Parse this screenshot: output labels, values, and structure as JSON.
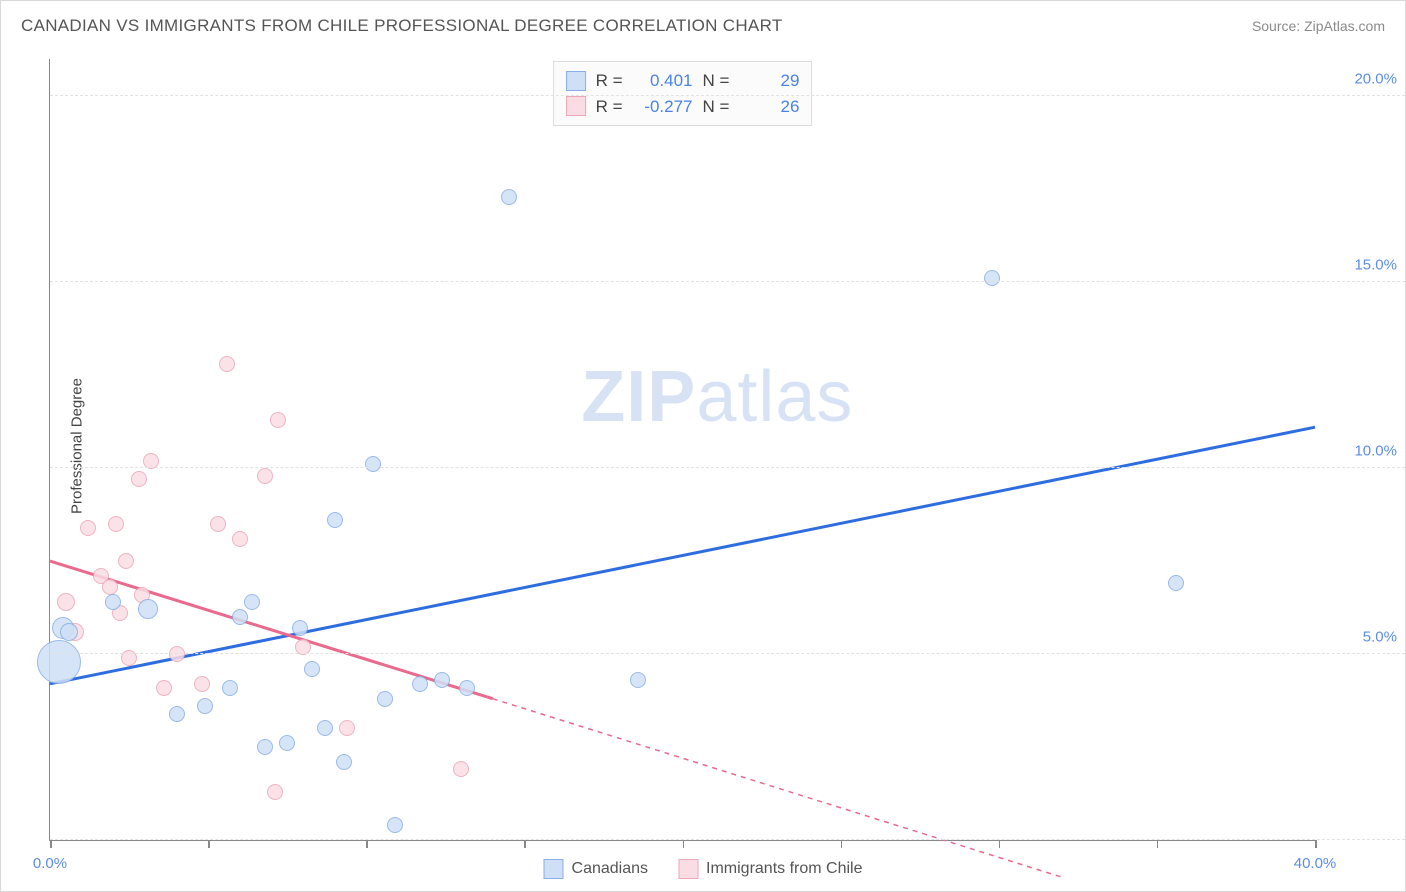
{
  "title": "CANADIAN VS IMMIGRANTS FROM CHILE PROFESSIONAL DEGREE CORRELATION CHART",
  "source_label": "Source: ZipAtlas.com",
  "y_axis_label": "Professional Degree",
  "watermark": {
    "part1": "ZIP",
    "part2": "atlas"
  },
  "chart": {
    "type": "scatter-with-trend",
    "x_domain": [
      0,
      40
    ],
    "y_domain": [
      0,
      21
    ],
    "x_ticks": [
      0,
      5,
      10,
      15,
      20,
      25,
      30,
      35,
      40
    ],
    "x_tick_labels": {
      "0": "0.0%",
      "40": "40.0%"
    },
    "y_gridlines": [
      0,
      5,
      10,
      15,
      20
    ],
    "y_tick_labels": {
      "5": "5.0%",
      "10": "10.0%",
      "15": "15.0%",
      "20": "20.0%"
    },
    "background_color": "#ffffff",
    "grid_color": "#e2e2e2",
    "axis_color": "#888888",
    "tick_label_color": "#5b8de8"
  },
  "series": {
    "canadians": {
      "label": "Canadians",
      "fill": "#cfe0f6",
      "stroke": "#88aee4",
      "line_color": "#2e6de0",
      "line_width": 3,
      "R": "0.401",
      "N": "29",
      "points": [
        {
          "x": 0.3,
          "y": 4.8,
          "r": 22
        },
        {
          "x": 0.4,
          "y": 5.7,
          "r": 11
        },
        {
          "x": 0.6,
          "y": 5.6,
          "r": 9
        },
        {
          "x": 3.1,
          "y": 6.2,
          "r": 10
        },
        {
          "x": 2.0,
          "y": 6.4,
          "r": 8
        },
        {
          "x": 4.0,
          "y": 3.4,
          "r": 8
        },
        {
          "x": 4.9,
          "y": 3.6,
          "r": 8
        },
        {
          "x": 5.7,
          "y": 4.1,
          "r": 8
        },
        {
          "x": 6.0,
          "y": 6.0,
          "r": 8
        },
        {
          "x": 6.4,
          "y": 6.4,
          "r": 8
        },
        {
          "x": 6.8,
          "y": 2.5,
          "r": 8
        },
        {
          "x": 7.5,
          "y": 2.6,
          "r": 8
        },
        {
          "x": 7.9,
          "y": 5.7,
          "r": 8
        },
        {
          "x": 8.3,
          "y": 4.6,
          "r": 8
        },
        {
          "x": 8.7,
          "y": 3.0,
          "r": 8
        },
        {
          "x": 9.0,
          "y": 8.6,
          "r": 8
        },
        {
          "x": 9.3,
          "y": 2.1,
          "r": 8
        },
        {
          "x": 10.2,
          "y": 10.1,
          "r": 8
        },
        {
          "x": 10.6,
          "y": 3.8,
          "r": 8
        },
        {
          "x": 10.9,
          "y": 0.4,
          "r": 8
        },
        {
          "x": 11.7,
          "y": 4.2,
          "r": 8
        },
        {
          "x": 12.4,
          "y": 4.3,
          "r": 8
        },
        {
          "x": 13.2,
          "y": 4.1,
          "r": 8
        },
        {
          "x": 14.5,
          "y": 17.3,
          "r": 8
        },
        {
          "x": 18.6,
          "y": 4.3,
          "r": 8
        },
        {
          "x": 29.8,
          "y": 15.1,
          "r": 8
        },
        {
          "x": 35.6,
          "y": 6.9,
          "r": 8
        }
      ],
      "trend": {
        "x1": 0,
        "y1": 4.2,
        "x2": 40,
        "y2": 11.1
      }
    },
    "chile": {
      "label": "Immigrants from Chile",
      "fill": "#fadde4",
      "stroke": "#eca6b8",
      "line_color": "#e96a8c",
      "line_width": 3,
      "R": "-0.277",
      "N": "26",
      "points": [
        {
          "x": 0.5,
          "y": 6.4,
          "r": 9
        },
        {
          "x": 0.8,
          "y": 5.6,
          "r": 9
        },
        {
          "x": 1.2,
          "y": 8.4,
          "r": 8
        },
        {
          "x": 1.6,
          "y": 7.1,
          "r": 8
        },
        {
          "x": 1.9,
          "y": 6.8,
          "r": 8
        },
        {
          "x": 2.1,
          "y": 8.5,
          "r": 8
        },
        {
          "x": 2.4,
          "y": 7.5,
          "r": 8
        },
        {
          "x": 2.2,
          "y": 6.1,
          "r": 8
        },
        {
          "x": 2.5,
          "y": 4.9,
          "r": 8
        },
        {
          "x": 2.8,
          "y": 9.7,
          "r": 8
        },
        {
          "x": 2.9,
          "y": 6.6,
          "r": 8
        },
        {
          "x": 3.2,
          "y": 10.2,
          "r": 8
        },
        {
          "x": 3.6,
          "y": 4.1,
          "r": 8
        },
        {
          "x": 4.0,
          "y": 5.0,
          "r": 8
        },
        {
          "x": 4.8,
          "y": 4.2,
          "r": 8
        },
        {
          "x": 5.3,
          "y": 8.5,
          "r": 8
        },
        {
          "x": 5.6,
          "y": 12.8,
          "r": 8
        },
        {
          "x": 6.0,
          "y": 8.1,
          "r": 8
        },
        {
          "x": 6.8,
          "y": 9.8,
          "r": 8
        },
        {
          "x": 7.1,
          "y": 1.3,
          "r": 8
        },
        {
          "x": 7.2,
          "y": 11.3,
          "r": 8
        },
        {
          "x": 8.0,
          "y": 5.2,
          "r": 8
        },
        {
          "x": 9.4,
          "y": 3.0,
          "r": 8
        },
        {
          "x": 13.0,
          "y": 1.9,
          "r": 8
        }
      ],
      "trend_solid": {
        "x1": 0,
        "y1": 7.5,
        "x2": 14,
        "y2": 3.8
      },
      "trend_dashed": {
        "x1": 14,
        "y1": 3.8,
        "x2": 32,
        "y2": -1.0
      }
    }
  },
  "top_legend": {
    "row1": {
      "R_label": "R =",
      "N_label": "N ="
    },
    "row2": {
      "R_label": "R =",
      "N_label": "N ="
    }
  },
  "bottom_legend": {}
}
